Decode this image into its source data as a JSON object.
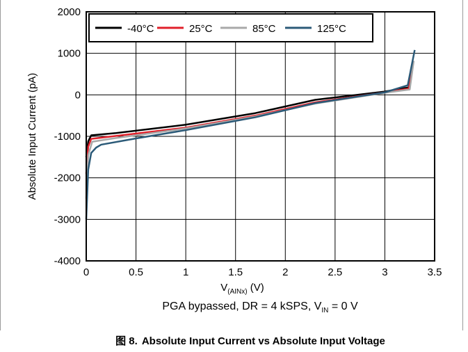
{
  "chart_data": {
    "type": "line",
    "xlabel": "V",
    "xlabel_sub": "(AINx)",
    "xlabel_unit": " (V)",
    "ylabel": "Absolute Input Current (pA)",
    "xlim": [
      0,
      3.5
    ],
    "ylim": [
      -4000,
      2000
    ],
    "xticks": [
      0,
      0.5,
      1,
      1.5,
      2,
      2.5,
      3,
      3.5
    ],
    "xtick_labels": [
      "0",
      "0.5",
      "1",
      "1.5",
      "2",
      "2.5",
      "3",
      "3.5"
    ],
    "yticks": [
      -4000,
      -3000,
      -2000,
      -1000,
      0,
      1000,
      2000
    ],
    "ytick_labels": [
      "-4000",
      "-3000",
      "-2000",
      "-1000",
      "0",
      "1000",
      "2000"
    ],
    "grid": true,
    "legend_position": "top",
    "series": [
      {
        "name": "-40°C",
        "color": "#000000",
        "x": [
          0.0,
          0.02,
          0.05,
          0.3,
          1.0,
          1.7,
          2.3,
          3.0,
          3.24,
          3.27
        ],
        "y": [
          -1500,
          -1120,
          -975,
          -920,
          -720,
          -440,
          -120,
          80,
          180,
          620
        ]
      },
      {
        "name": "25°C",
        "color": "#e0202a",
        "x": [
          0.0,
          0.02,
          0.05,
          0.3,
          1.0,
          1.7,
          2.3,
          3.0,
          3.24,
          3.28
        ],
        "y": [
          -1900,
          -1250,
          -1060,
          -990,
          -790,
          -500,
          -180,
          60,
          150,
          700
        ]
      },
      {
        "name": "85°C",
        "color": "#a8a8a8",
        "x": [
          0.0,
          0.02,
          0.06,
          0.3,
          1.0,
          1.7,
          2.3,
          3.0,
          3.25,
          3.29
        ],
        "y": [
          -2500,
          -1450,
          -1130,
          -1040,
          -810,
          -520,
          -210,
          50,
          130,
          820
        ]
      },
      {
        "name": "125°C",
        "color": "#2b5a78",
        "x": [
          0.0,
          0.02,
          0.05,
          0.1,
          0.15,
          0.5,
          1.0,
          1.7,
          2.3,
          3.0,
          3.23,
          3.3
        ],
        "y": [
          -3000,
          -1800,
          -1400,
          -1270,
          -1200,
          -1050,
          -850,
          -540,
          -200,
          60,
          230,
          1080
        ]
      }
    ]
  },
  "note": {
    "prefix": "PGA bypassed, DR = 4 kSPS, V",
    "sub": "IN",
    "suffix": " = 0 V"
  },
  "caption": {
    "number": "图 8.",
    "text": "Absolute Input Current vs Absolute Input Voltage"
  }
}
